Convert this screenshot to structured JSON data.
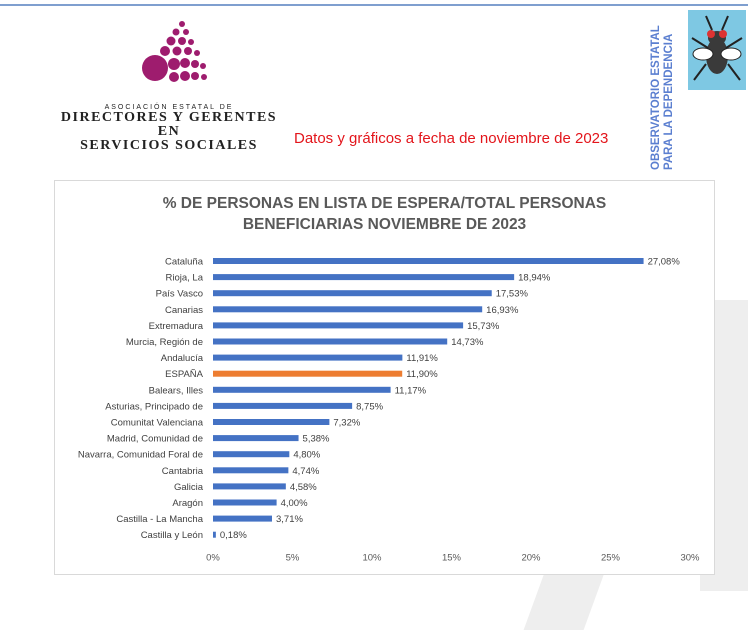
{
  "header": {
    "assoc_line1": "ASOCIACIÓN ESTATAL DE",
    "assoc_line2": "DIRECTORES Y GERENTES EN",
    "assoc_line3": "SERVICIOS SOCIALES",
    "date_note": "Datos y gráficos a fecha de noviembre de 2023",
    "observatorio_line1": "OBSERVATORIO ESTATAL",
    "observatorio_line2": "PARA LA DEPENDENCIA"
  },
  "colors": {
    "bar": "#4472c4",
    "highlight_bar": "#ed7d31",
    "logo": "#9e1c6e",
    "date_note": "#e3151b",
    "observatorio_bg": "#7ec8e3"
  },
  "chart_data": {
    "type": "bar",
    "orientation": "horizontal",
    "title_line1": "% DE PERSONAS EN LISTA DE ESPERA/TOTAL PERSONAS",
    "title_line2": "BENEFICIARIAS NOVIEMBRE DE 2023",
    "categories": [
      "Cataluña",
      "Rioja, La",
      "País Vasco",
      "Canarias",
      "Extremadura",
      "Murcia, Región de",
      "Andalucía",
      "ESPAÑA",
      "Balears, Illes",
      "Asturias, Principado de",
      "Comunitat Valenciana",
      "Madrid, Comunidad de",
      "Navarra, Comunidad Foral de",
      "Cantabria",
      "Galicia",
      "Aragón",
      "Castilla - La Mancha",
      "Castilla y León"
    ],
    "values": [
      27.08,
      18.94,
      17.53,
      16.93,
      15.73,
      14.73,
      11.91,
      11.9,
      11.17,
      8.75,
      7.32,
      5.38,
      4.8,
      4.74,
      4.58,
      4.0,
      3.71,
      0.18
    ],
    "value_labels": [
      "27,08%",
      "18,94%",
      "17,53%",
      "16,93%",
      "15,73%",
      "14,73%",
      "11,91%",
      "11,90%",
      "11,17%",
      "8,75%",
      "7,32%",
      "5,38%",
      "4,80%",
      "4,74%",
      "4,58%",
      "4,00%",
      "3,71%",
      "0,18%"
    ],
    "highlight": "ESPAÑA",
    "xlim": [
      0,
      30
    ],
    "xticks": [
      0,
      5,
      10,
      15,
      20,
      25,
      30
    ],
    "xtick_labels": [
      "0%",
      "5%",
      "10%",
      "15%",
      "20%",
      "25%",
      "30%"
    ],
    "grid": false,
    "legend": "none"
  }
}
